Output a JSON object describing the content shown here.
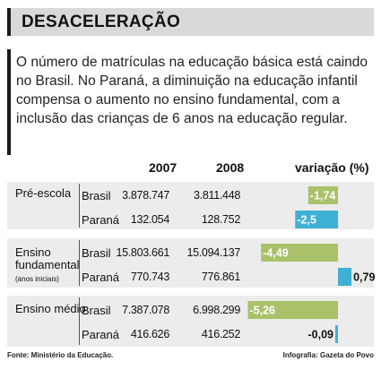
{
  "header": {
    "title": "DESACELERAÇÃO"
  },
  "intro": {
    "text": "O número de matrículas na educação básica está caindo no Brasil. No Paraná, a diminuição na educação infantil compensa o aumento no ensino fundamental, com a inclusão das crianças de 6 anos na educação regular."
  },
  "columns": {
    "y2007": "2007",
    "y2008": "2008",
    "variation": "variação (%)"
  },
  "groups": [
    {
      "label": "Pré-escola",
      "sublabel": ""
    },
    {
      "label": "Ensino fundamental",
      "sublabel": "(anos iniciais)"
    },
    {
      "label": "Ensino médio",
      "sublabel": ""
    }
  ],
  "rows": [
    {
      "region": "Brasil",
      "v2007": "3.878.747",
      "v2008": "3.811.448"
    },
    {
      "region": "Paraná",
      "v2007": "132.054",
      "v2008": "128.752"
    },
    {
      "region": "Brasil",
      "v2007": "15.803.661",
      "v2008": "15.094.137"
    },
    {
      "region": "Paraná",
      "v2007": "770.743",
      "v2008": "776.861"
    },
    {
      "region": "Brasil",
      "v2007": "7.387.078",
      "v2008": "6.998.299"
    },
    {
      "region": "Paraná",
      "v2007": "416.626",
      "v2008": "416.252"
    }
  ],
  "footer": {
    "source": "Fonte: Ministério da Educação.",
    "credit": "Infografia: Gazeta do Povo"
  },
  "colors": {
    "brasil": "#a9c26a",
    "parana": "#3fb1d4"
  },
  "chart_data": {
    "type": "bar",
    "orientation": "horizontal",
    "title": "",
    "categories": [
      "Pré-escola Brasil",
      "Pré-escola Paraná",
      "Ensino fundamental Brasil",
      "Ensino fundamental Paraná",
      "Ensino médio Brasil",
      "Ensino médio Paraná"
    ],
    "values": [
      -1.74,
      -2.5,
      -4.49,
      0.79,
      -5.26,
      -0.09
    ],
    "labels": [
      "-1,74",
      "-2,5",
      "-4,49",
      "0,79",
      "-5,26",
      "-0,09"
    ],
    "xlabel": "variação (%)",
    "ylabel": "",
    "xlim": [
      -5.26,
      0.79
    ],
    "grid": false
  }
}
